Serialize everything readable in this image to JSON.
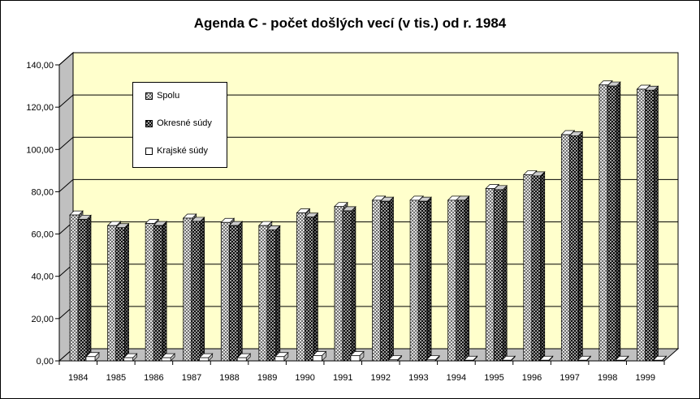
{
  "colors": {
    "plot_bg": "#ffffcc",
    "side_wall": "#c0c0c0",
    "grid": "#000000"
  },
  "chart_data": {
    "type": "bar",
    "title": "Agenda C - počet došlých vecí (v tis.) od r. 1984",
    "categories": [
      "1984",
      "1985",
      "1986",
      "1987",
      "1988",
      "1989",
      "1990",
      "1991",
      "1992",
      "1993",
      "1994",
      "1995",
      "1996",
      "1997",
      "1998",
      "1999"
    ],
    "y_ticks": [
      "0,00",
      "20,00",
      "40,00",
      "60,00",
      "80,00",
      "100,00",
      "120,00",
      "140,00"
    ],
    "ylim": [
      0,
      140
    ],
    "grid": true,
    "legend_position": "top-left",
    "series": [
      {
        "name": "Spolu",
        "pattern": "light-hatch",
        "values": [
          69,
          64,
          65,
          67.5,
          65.5,
          64,
          70,
          73,
          76,
          76,
          76,
          81.5,
          88,
          107,
          130.5,
          128.5
        ]
      },
      {
        "name": "Okresné súdy",
        "pattern": "dark-hatch",
        "values": [
          67,
          63,
          64,
          66,
          64,
          62,
          68,
          71,
          75.5,
          75.5,
          76,
          81,
          87.5,
          106.5,
          130,
          128
        ]
      },
      {
        "name": "Krajské súdy",
        "pattern": "white",
        "values": [
          2,
          1.5,
          1.5,
          1.5,
          1.5,
          2,
          2.5,
          2.5,
          0.5,
          0.5,
          0.3,
          0.3,
          0.3,
          0.3,
          0.3,
          0.3
        ]
      }
    ]
  }
}
